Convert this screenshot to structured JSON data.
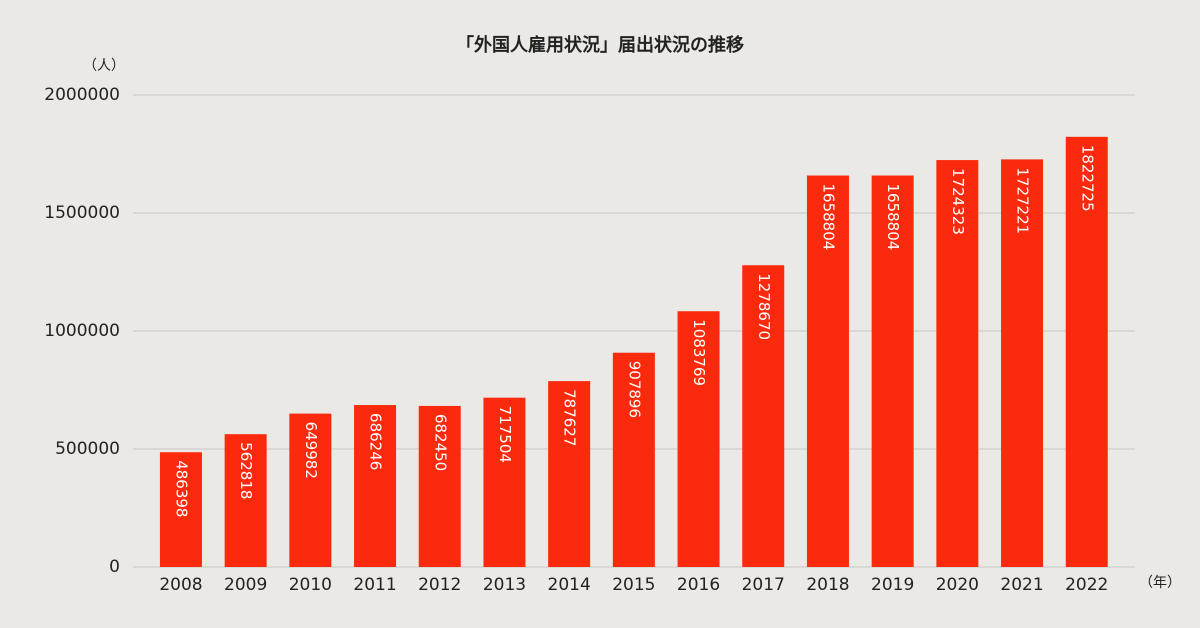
{
  "chart_data": {
    "type": "bar",
    "title": "「外国人雇用状況」届出状況の推移",
    "y_label": "（人）",
    "x_label": "（年）",
    "categories": [
      "2008",
      "2009",
      "2010",
      "2011",
      "2012",
      "2013",
      "2014",
      "2015",
      "2016",
      "2017",
      "2018",
      "2019",
      "2020",
      "2021",
      "2022"
    ],
    "values": [
      486398,
      562818,
      649982,
      686246,
      682450,
      717504,
      787627,
      907896,
      1083769,
      1278670,
      1658804,
      1658804,
      1724323,
      1727221,
      1822725
    ],
    "color": "#fb2a0c",
    "ylim": [
      0,
      2000000
    ],
    "yticks": [
      0,
      500000,
      1000000,
      1500000,
      2000000
    ],
    "grid": true
  }
}
